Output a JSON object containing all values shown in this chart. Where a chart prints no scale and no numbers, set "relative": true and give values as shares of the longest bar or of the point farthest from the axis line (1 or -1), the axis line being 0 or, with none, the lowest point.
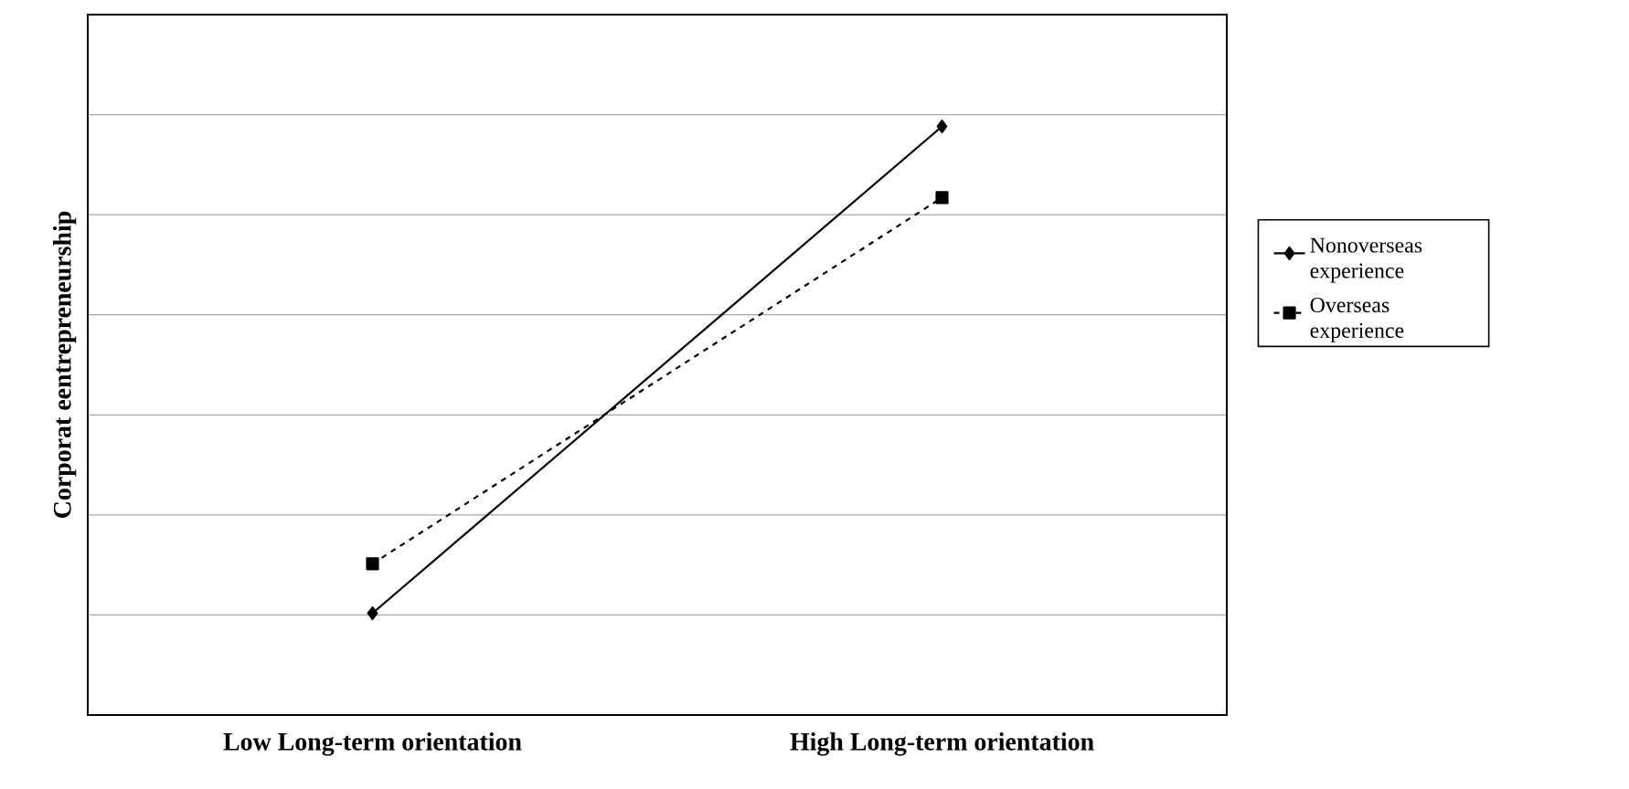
{
  "chart_data": {
    "type": "line",
    "ylabel": "Corporat   eentrepreneurship",
    "categories": [
      "Low Long-term orientation",
      "High Long-term orientation"
    ],
    "relative": true,
    "grid": "y",
    "legend": "right",
    "series": [
      {
        "name": "Nonoverseas experience",
        "color": "#000000",
        "values": [
          0.173,
          1
        ],
        "marker": "diamond",
        "line_style": "solid"
      },
      {
        "name": "Overseas experience",
        "color": "#000000",
        "values": [
          0.257,
          0.879
        ],
        "marker": "square",
        "line_style": "dashed"
      }
    ]
  }
}
